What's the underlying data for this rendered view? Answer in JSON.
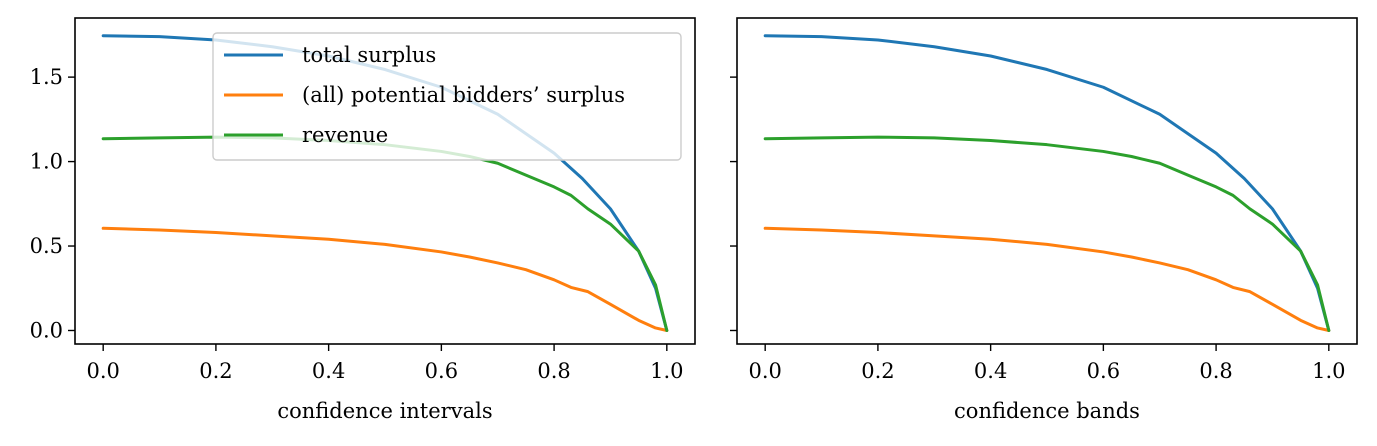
{
  "chart_data": [
    {
      "type": "line",
      "xlabel": "confidence intervals",
      "ylabel": "",
      "xlim": [
        -0.05,
        1.05
      ],
      "ylim": [
        -0.08,
        1.85
      ],
      "xticks": [
        0.0,
        0.2,
        0.4,
        0.6,
        0.8,
        1.0
      ],
      "xtick_labels": [
        "0.0",
        "0.2",
        "0.4",
        "0.6",
        "0.8",
        "1.0"
      ],
      "yticks": [
        0.0,
        0.5,
        1.0,
        1.5
      ],
      "ytick_labels": [
        "0.0",
        "0.5",
        "1.0",
        "1.5"
      ],
      "legend": {
        "position": "upper center",
        "entries": [
          "total surplus",
          "(all) potential bidders’ surplus",
          "revenue"
        ]
      },
      "series": [
        {
          "name": "total surplus",
          "color": "#1f77b4",
          "x": [
            0.0,
            0.1,
            0.2,
            0.3,
            0.4,
            0.5,
            0.6,
            0.7,
            0.8,
            0.85,
            0.9,
            0.95,
            0.98,
            1.0
          ],
          "y": [
            1.745,
            1.74,
            1.72,
            1.68,
            1.625,
            1.545,
            1.44,
            1.28,
            1.05,
            0.9,
            0.72,
            0.47,
            0.25,
            0.0
          ]
        },
        {
          "name": "(all) potential bidders’ surplus",
          "color": "#ff7f0e",
          "x": [
            0.0,
            0.1,
            0.2,
            0.3,
            0.4,
            0.5,
            0.6,
            0.65,
            0.7,
            0.75,
            0.8,
            0.83,
            0.86,
            0.9,
            0.95,
            0.98,
            1.0
          ],
          "y": [
            0.605,
            0.595,
            0.58,
            0.56,
            0.54,
            0.51,
            0.465,
            0.435,
            0.4,
            0.36,
            0.3,
            0.255,
            0.23,
            0.155,
            0.06,
            0.015,
            0.0
          ]
        },
        {
          "name": "revenue",
          "color": "#2ca02c",
          "x": [
            0.0,
            0.1,
            0.2,
            0.3,
            0.4,
            0.5,
            0.6,
            0.65,
            0.7,
            0.75,
            0.8,
            0.83,
            0.86,
            0.9,
            0.95,
            0.98,
            1.0
          ],
          "y": [
            1.135,
            1.14,
            1.145,
            1.14,
            1.125,
            1.1,
            1.06,
            1.03,
            0.99,
            0.92,
            0.85,
            0.8,
            0.72,
            0.63,
            0.47,
            0.27,
            0.0
          ]
        }
      ]
    },
    {
      "type": "line",
      "xlabel": "confidence bands",
      "ylabel": "",
      "xlim": [
        -0.05,
        1.05
      ],
      "ylim": [
        -0.08,
        1.85
      ],
      "xticks": [
        0.0,
        0.2,
        0.4,
        0.6,
        0.8,
        1.0
      ],
      "xtick_labels": [
        "0.0",
        "0.2",
        "0.4",
        "0.6",
        "0.8",
        "1.0"
      ],
      "yticks": [
        0.0,
        0.5,
        1.0,
        1.5
      ],
      "ytick_labels": [
        "",
        "",
        "",
        ""
      ],
      "series": [
        {
          "name": "total surplus",
          "color": "#1f77b4",
          "x": [
            0.0,
            0.1,
            0.2,
            0.3,
            0.4,
            0.5,
            0.6,
            0.7,
            0.8,
            0.85,
            0.9,
            0.95,
            0.98,
            1.0
          ],
          "y": [
            1.745,
            1.74,
            1.72,
            1.68,
            1.625,
            1.545,
            1.44,
            1.28,
            1.05,
            0.9,
            0.72,
            0.47,
            0.25,
            0.0
          ]
        },
        {
          "name": "(all) potential bidders’ surplus",
          "color": "#ff7f0e",
          "x": [
            0.0,
            0.1,
            0.2,
            0.3,
            0.4,
            0.5,
            0.6,
            0.65,
            0.7,
            0.75,
            0.8,
            0.83,
            0.86,
            0.9,
            0.95,
            0.98,
            1.0
          ],
          "y": [
            0.605,
            0.595,
            0.58,
            0.56,
            0.54,
            0.51,
            0.465,
            0.435,
            0.4,
            0.36,
            0.3,
            0.255,
            0.23,
            0.155,
            0.06,
            0.015,
            0.0
          ]
        },
        {
          "name": "revenue",
          "color": "#2ca02c",
          "x": [
            0.0,
            0.1,
            0.2,
            0.3,
            0.4,
            0.5,
            0.6,
            0.65,
            0.7,
            0.75,
            0.8,
            0.83,
            0.86,
            0.9,
            0.95,
            0.98,
            1.0
          ],
          "y": [
            1.135,
            1.14,
            1.145,
            1.14,
            1.125,
            1.1,
            1.06,
            1.03,
            0.99,
            0.92,
            0.85,
            0.8,
            0.72,
            0.63,
            0.47,
            0.27,
            0.0
          ]
        }
      ]
    }
  ]
}
